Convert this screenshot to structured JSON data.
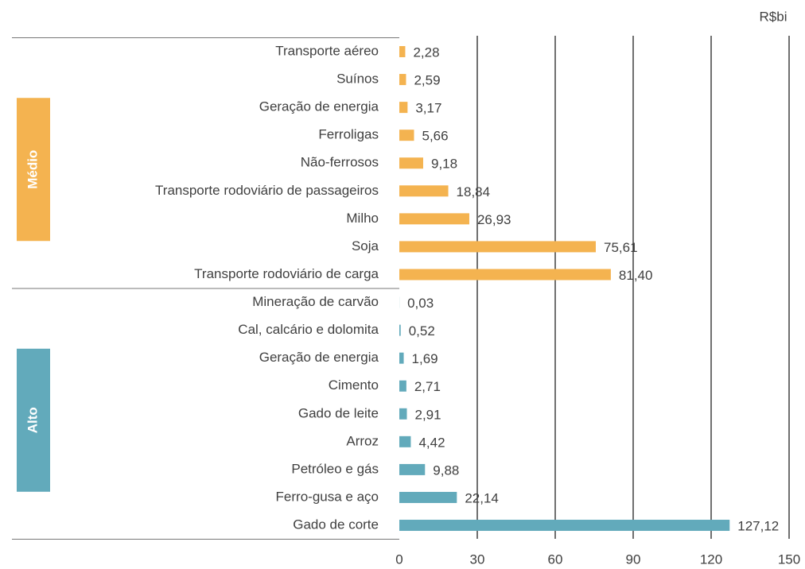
{
  "chart_data": {
    "type": "bar",
    "orientation": "horizontal",
    "unit_label": "R$bi",
    "xlim": [
      0,
      150
    ],
    "xticks": [
      0,
      30,
      60,
      90,
      120,
      150
    ],
    "grid": true,
    "groups": [
      {
        "name": "Médio",
        "color": "#f4b350",
        "categories": [
          "Transporte aéreo",
          "Suínos",
          "Geração de energia",
          "Ferroligas",
          "Não-ferrosos",
          "Transporte rodoviário de passageiros",
          "Milho",
          "Soja",
          "Transporte rodoviário de carga"
        ],
        "values": [
          2.28,
          2.59,
          3.17,
          5.66,
          9.18,
          18.84,
          26.93,
          75.61,
          81.4
        ],
        "value_labels": [
          "2,28",
          "2,59",
          "3,17",
          "5,66",
          "9,18",
          "18,84",
          "26,93",
          "75,61",
          "81,40"
        ]
      },
      {
        "name": "Alto",
        "color": "#62aabb",
        "categories": [
          "Mineração de carvão",
          "Cal, calcário e dolomita",
          "Geração de energia",
          "Cimento",
          "Gado de leite",
          "Arroz",
          "Petróleo e gás",
          "Ferro-gusa e aço",
          "Gado de corte"
        ],
        "values": [
          0.03,
          0.52,
          1.69,
          2.71,
          2.91,
          4.42,
          9.88,
          22.14,
          127.12
        ],
        "value_labels": [
          "0,03",
          "0,52",
          "1,69",
          "2,71",
          "2,91",
          "4,42",
          "9,88",
          "22,14",
          "127,12"
        ]
      }
    ]
  }
}
